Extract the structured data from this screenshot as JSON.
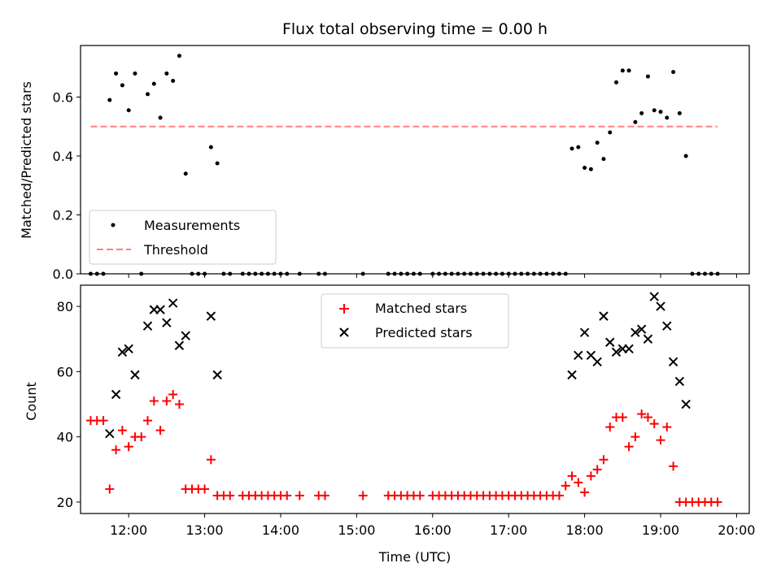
{
  "chart_data": [
    {
      "type": "scatter",
      "title": "Flux total observing time = 0.00 h",
      "xlabel": "",
      "ylabel": "Matched/Predicted stars",
      "xlim": [
        "11:22",
        "20:10"
      ],
      "ylim": [
        0.0,
        0.775
      ],
      "yticks": [
        "0.0",
        "0.2",
        "0.4",
        "0.6"
      ],
      "grid": false,
      "legend_placement": "lower-left",
      "legend": [
        "Measurements",
        "Threshold"
      ],
      "threshold": {
        "name": "Threshold",
        "value": 0.5,
        "x_start": "11:30",
        "x_end": "19:45",
        "color": "#ff8080",
        "style": "dashed"
      },
      "series": [
        {
          "name": "Measurements",
          "color": "#000000",
          "points": [
            [
              "11:30",
              0
            ],
            [
              "11:35",
              0
            ],
            [
              "11:40",
              0
            ],
            [
              "11:45",
              0.59
            ],
            [
              "11:50",
              0.68
            ],
            [
              "11:55",
              0.64
            ],
            [
              "12:00",
              0.555
            ],
            [
              "12:05",
              0.68
            ],
            [
              "12:10",
              0
            ],
            [
              "12:15",
              0.61
            ],
            [
              "12:20",
              0.645
            ],
            [
              "12:25",
              0.53
            ],
            [
              "12:30",
              0.68
            ],
            [
              "12:35",
              0.655
            ],
            [
              "12:40",
              0.74
            ],
            [
              "12:45",
              0.34
            ],
            [
              "12:50",
              0
            ],
            [
              "12:55",
              0
            ],
            [
              "13:00",
              0
            ],
            [
              "13:05",
              0.43
            ],
            [
              "13:10",
              0.375
            ],
            [
              "13:15",
              0
            ],
            [
              "13:20",
              0
            ],
            [
              "13:30",
              0
            ],
            [
              "13:35",
              0
            ],
            [
              "13:40",
              0
            ],
            [
              "13:45",
              0
            ],
            [
              "13:50",
              0
            ],
            [
              "13:55",
              0
            ],
            [
              "14:00",
              0
            ],
            [
              "14:05",
              0
            ],
            [
              "14:15",
              0
            ],
            [
              "14:30",
              0
            ],
            [
              "14:35",
              0
            ],
            [
              "15:05",
              0
            ],
            [
              "15:25",
              0
            ],
            [
              "15:30",
              0
            ],
            [
              "15:35",
              0
            ],
            [
              "15:40",
              0
            ],
            [
              "15:45",
              0
            ],
            [
              "15:50",
              0
            ],
            [
              "16:00",
              0
            ],
            [
              "16:05",
              0
            ],
            [
              "16:10",
              0
            ],
            [
              "16:15",
              0
            ],
            [
              "16:20",
              0
            ],
            [
              "16:25",
              0
            ],
            [
              "16:30",
              0
            ],
            [
              "16:35",
              0
            ],
            [
              "16:40",
              0
            ],
            [
              "16:45",
              0
            ],
            [
              "16:50",
              0
            ],
            [
              "16:55",
              0
            ],
            [
              "17:00",
              0
            ],
            [
              "17:05",
              0
            ],
            [
              "17:10",
              0
            ],
            [
              "17:15",
              0
            ],
            [
              "17:20",
              0
            ],
            [
              "17:25",
              0
            ],
            [
              "17:30",
              0
            ],
            [
              "17:35",
              0
            ],
            [
              "17:40",
              0
            ],
            [
              "17:45",
              0
            ],
            [
              "17:50",
              0.425
            ],
            [
              "17:55",
              0.43
            ],
            [
              "18:00",
              0.36
            ],
            [
              "18:05",
              0.355
            ],
            [
              "18:10",
              0.445
            ],
            [
              "18:15",
              0.39
            ],
            [
              "18:20",
              0.48
            ],
            [
              "18:25",
              0.65
            ],
            [
              "18:30",
              0.69
            ],
            [
              "18:35",
              0.69
            ],
            [
              "18:40",
              0.515
            ],
            [
              "18:45",
              0.545
            ],
            [
              "18:50",
              0.67
            ],
            [
              "18:55",
              0.555
            ],
            [
              "19:00",
              0.55
            ],
            [
              "19:05",
              0.53
            ],
            [
              "19:10",
              0.685
            ],
            [
              "19:15",
              0.545
            ],
            [
              "19:20",
              0.4
            ],
            [
              "19:25",
              0
            ],
            [
              "19:30",
              0
            ],
            [
              "19:35",
              0
            ],
            [
              "19:40",
              0
            ],
            [
              "19:45",
              0
            ]
          ]
        }
      ]
    },
    {
      "type": "scatter",
      "title": "",
      "xlabel": "Time (UTC)",
      "ylabel": "Count",
      "xlim": [
        "11:22",
        "20:10"
      ],
      "ylim": [
        16.5,
        86.5
      ],
      "yticks": [
        "20",
        "40",
        "60",
        "80"
      ],
      "xticks": [
        "12:00",
        "13:00",
        "14:00",
        "15:00",
        "16:00",
        "17:00",
        "18:00",
        "19:00",
        "20:00"
      ],
      "grid": false,
      "legend_placement": "top-center",
      "legend": [
        "Matched stars",
        "Predicted stars"
      ],
      "series": [
        {
          "name": "Matched stars",
          "color": "#ff0000",
          "marker": "plus",
          "points": [
            [
              "11:30",
              45
            ],
            [
              "11:35",
              45
            ],
            [
              "11:40",
              45
            ],
            [
              "11:45",
              24
            ],
            [
              "11:50",
              36
            ],
            [
              "11:55",
              42
            ],
            [
              "12:00",
              37
            ],
            [
              "12:05",
              40
            ],
            [
              "12:10",
              40
            ],
            [
              "12:15",
              45
            ],
            [
              "12:20",
              51
            ],
            [
              "12:25",
              42
            ],
            [
              "12:30",
              51
            ],
            [
              "12:35",
              53
            ],
            [
              "12:40",
              50
            ],
            [
              "12:45",
              24
            ],
            [
              "12:50",
              24
            ],
            [
              "12:55",
              24
            ],
            [
              "13:00",
              24
            ],
            [
              "13:05",
              33
            ],
            [
              "13:10",
              22
            ],
            [
              "13:15",
              22
            ],
            [
              "13:20",
              22
            ],
            [
              "13:30",
              22
            ],
            [
              "13:35",
              22
            ],
            [
              "13:40",
              22
            ],
            [
              "13:45",
              22
            ],
            [
              "13:50",
              22
            ],
            [
              "13:55",
              22
            ],
            [
              "14:00",
              22
            ],
            [
              "14:05",
              22
            ],
            [
              "14:15",
              22
            ],
            [
              "14:30",
              22
            ],
            [
              "14:35",
              22
            ],
            [
              "15:05",
              22
            ],
            [
              "15:25",
              22
            ],
            [
              "15:30",
              22
            ],
            [
              "15:35",
              22
            ],
            [
              "15:40",
              22
            ],
            [
              "15:45",
              22
            ],
            [
              "15:50",
              22
            ],
            [
              "16:00",
              22
            ],
            [
              "16:05",
              22
            ],
            [
              "16:10",
              22
            ],
            [
              "16:15",
              22
            ],
            [
              "16:20",
              22
            ],
            [
              "16:25",
              22
            ],
            [
              "16:30",
              22
            ],
            [
              "16:35",
              22
            ],
            [
              "16:40",
              22
            ],
            [
              "16:45",
              22
            ],
            [
              "16:50",
              22
            ],
            [
              "16:55",
              22
            ],
            [
              "17:00",
              22
            ],
            [
              "17:05",
              22
            ],
            [
              "17:10",
              22
            ],
            [
              "17:15",
              22
            ],
            [
              "17:20",
              22
            ],
            [
              "17:25",
              22
            ],
            [
              "17:30",
              22
            ],
            [
              "17:35",
              22
            ],
            [
              "17:40",
              22
            ],
            [
              "17:45",
              25
            ],
            [
              "17:50",
              28
            ],
            [
              "17:55",
              26
            ],
            [
              "18:00",
              23
            ],
            [
              "18:05",
              28
            ],
            [
              "18:10",
              30
            ],
            [
              "18:15",
              33
            ],
            [
              "18:20",
              43
            ],
            [
              "18:25",
              46
            ],
            [
              "18:30",
              46
            ],
            [
              "18:35",
              37
            ],
            [
              "18:40",
              40
            ],
            [
              "18:45",
              47
            ],
            [
              "18:50",
              46
            ],
            [
              "18:55",
              44
            ],
            [
              "19:00",
              39
            ],
            [
              "19:05",
              43
            ],
            [
              "19:10",
              31
            ],
            [
              "19:15",
              20
            ],
            [
              "19:20",
              20
            ],
            [
              "19:25",
              20
            ],
            [
              "19:30",
              20
            ],
            [
              "19:35",
              20
            ],
            [
              "19:40",
              20
            ],
            [
              "19:45",
              20
            ]
          ]
        },
        {
          "name": "Predicted stars",
          "color": "#000000",
          "marker": "x",
          "points": [
            [
              "11:45",
              41
            ],
            [
              "11:50",
              53
            ],
            [
              "11:55",
              66
            ],
            [
              "12:00",
              67
            ],
            [
              "12:05",
              59
            ],
            [
              "12:15",
              74
            ],
            [
              "12:20",
              79
            ],
            [
              "12:25",
              79
            ],
            [
              "12:30",
              75
            ],
            [
              "12:35",
              81
            ],
            [
              "12:40",
              68
            ],
            [
              "12:45",
              71
            ],
            [
              "13:05",
              77
            ],
            [
              "13:10",
              59
            ],
            [
              "17:50",
              59
            ],
            [
              "17:55",
              65
            ],
            [
              "18:00",
              72
            ],
            [
              "18:05",
              65
            ],
            [
              "18:10",
              63
            ],
            [
              "18:15",
              77
            ],
            [
              "18:20",
              69
            ],
            [
              "18:25",
              66
            ],
            [
              "18:30",
              67
            ],
            [
              "18:35",
              67
            ],
            [
              "18:40",
              72
            ],
            [
              "18:45",
              73
            ],
            [
              "18:50",
              70
            ],
            [
              "18:55",
              83
            ],
            [
              "19:00",
              80
            ],
            [
              "19:05",
              74
            ],
            [
              "19:10",
              63
            ],
            [
              "19:15",
              57
            ],
            [
              "19:20",
              50
            ]
          ]
        }
      ]
    }
  ]
}
